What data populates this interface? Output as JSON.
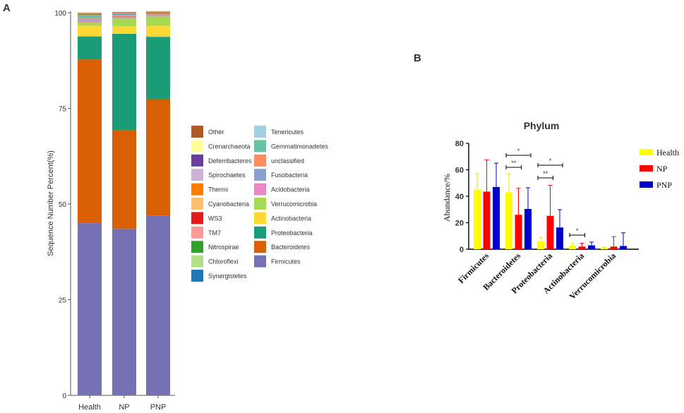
{
  "panels": {
    "a_label": "A",
    "b_label": "B"
  },
  "chart_data": [
    {
      "type": "bar",
      "stacked": true,
      "panel": "A",
      "ylabel": "Sequence Number Percent(%)",
      "ylim": [
        0,
        100
      ],
      "yticks": [
        0,
        25,
        50,
        75,
        100
      ],
      "categories": [
        "Health",
        "NP",
        "PNP"
      ],
      "series": [
        {
          "name": "Firmicutes",
          "color": "#7570b3",
          "values": [
            45.0,
            43.5,
            47.0
          ]
        },
        {
          "name": "Bacteroidetes",
          "color": "#d95f02",
          "values": [
            42.8,
            25.8,
            30.4
          ]
        },
        {
          "name": "Proteobacteria",
          "color": "#1b9e77",
          "values": [
            6.0,
            25.2,
            16.3
          ]
        },
        {
          "name": "Actinobacteria",
          "color": "#fdd835",
          "values": [
            2.8,
            2.0,
            2.9
          ]
        },
        {
          "name": "Verrucomicrobia",
          "color": "#a6d854",
          "values": [
            0.8,
            2.0,
            2.4
          ]
        },
        {
          "name": "Acidobacteria",
          "color": "#e78ac3",
          "values": [
            0.6,
            0.3,
            0.2
          ]
        },
        {
          "name": "Fusobacteria",
          "color": "#8da0cb",
          "values": [
            0.4,
            0.3,
            0.2
          ]
        },
        {
          "name": "unclassified",
          "color": "#fc8d62",
          "values": [
            0.3,
            0.3,
            0.2
          ]
        },
        {
          "name": "Gemmatimonadetes",
          "color": "#66c2a5",
          "values": [
            0.3,
            0.1,
            0.1
          ]
        },
        {
          "name": "Tenericutes",
          "color": "#a6cee3",
          "values": [
            0.1,
            0.1,
            0.05
          ]
        },
        {
          "name": "Synergistetes",
          "color": "#1f78b4",
          "values": [
            0.05,
            0.05,
            0.05
          ]
        },
        {
          "name": "Chloroflexi",
          "color": "#b2df8a",
          "values": [
            0.2,
            0.1,
            0.1
          ]
        },
        {
          "name": "Nitrospirae",
          "color": "#33a02c",
          "values": [
            0.2,
            0.05,
            0.05
          ]
        },
        {
          "name": "TM7",
          "color": "#fb9a99",
          "values": [
            0.1,
            0.05,
            0.05
          ]
        },
        {
          "name": "WS3",
          "color": "#e31a1c",
          "values": [
            0.05,
            0.05,
            0.05
          ]
        },
        {
          "name": "Cyanobacteria",
          "color": "#fdbf6f",
          "values": [
            0.05,
            0.05,
            0.05
          ]
        },
        {
          "name": "Thermi",
          "color": "#ff7f00",
          "values": [
            0.05,
            0.05,
            0.05
          ]
        },
        {
          "name": "Spirochaetes",
          "color": "#cab2d6",
          "values": [
            0.05,
            0.05,
            0.05
          ]
        },
        {
          "name": "Deferribacteres",
          "color": "#6a3d9a",
          "values": [
            0.05,
            0.05,
            0.05
          ]
        },
        {
          "name": "Crenarchaeota",
          "color": "#ffff99",
          "values": [
            0.05,
            0.05,
            0.05
          ]
        },
        {
          "name": "Other",
          "color": "#b15928",
          "values": [
            0.05,
            0.05,
            0.05
          ]
        }
      ],
      "legend": {
        "col1": [
          "Other",
          "Crenarchaeota",
          "Deferribacteres",
          "Spirochaetes",
          "Thermi",
          "Cyanobacteria",
          "WS3",
          "TM7",
          "Nitrospirae",
          "Chloroflexi",
          "Synergistetes"
        ],
        "col2": [
          "Tenericutes",
          "Gemmatimonadetes",
          "unclassified",
          "Fusobacteria",
          "Acidobacteria",
          "Verrucomicrobia",
          "Actinobacteria",
          "Proteobacteria",
          "Bacteroidetes",
          "Firmicutes"
        ]
      }
    },
    {
      "type": "bar",
      "panel": "B",
      "title": "Phylum",
      "ylabel": "Abundance/%",
      "ylim": [
        0,
        80
      ],
      "yticks": [
        0,
        20,
        40,
        60,
        80
      ],
      "categories": [
        "Firmicutes",
        "Bacteroidetes",
        "Proteobacteria",
        "Actinobacteria",
        "Verrucomicrobia"
      ],
      "series": [
        {
          "name": "Health",
          "color": "#ffff00",
          "values": [
            45,
            43,
            6,
            2.8,
            0.8
          ],
          "errors": [
            12,
            14,
            3,
            1.5,
            0.5
          ]
        },
        {
          "name": "NP",
          "color": "#ff0000",
          "values": [
            43.5,
            26,
            25.2,
            2,
            2
          ],
          "errors": [
            24,
            20,
            23,
            2.5,
            7.5
          ]
        },
        {
          "name": "PNP",
          "color": "#0000cc",
          "values": [
            47,
            30.4,
            16.4,
            2.9,
            2.4
          ],
          "errors": [
            18,
            16,
            13.5,
            2.5,
            10
          ]
        }
      ],
      "significance": [
        {
          "category": "Bacteroidetes",
          "from": "Health",
          "to": "PNP",
          "label": "*"
        },
        {
          "category": "Bacteroidetes",
          "from": "Health",
          "to": "NP",
          "label": "**"
        },
        {
          "category": "Proteobacteria",
          "from": "Health",
          "to": "PNP",
          "label": "*"
        },
        {
          "category": "Proteobacteria",
          "from": "Health",
          "to": "NP",
          "label": "**"
        },
        {
          "category": "Actinobacteria",
          "from": "Health",
          "to": "NP",
          "label": "*"
        }
      ],
      "legend_entries": [
        "Health",
        "NP",
        "PNP"
      ]
    }
  ]
}
